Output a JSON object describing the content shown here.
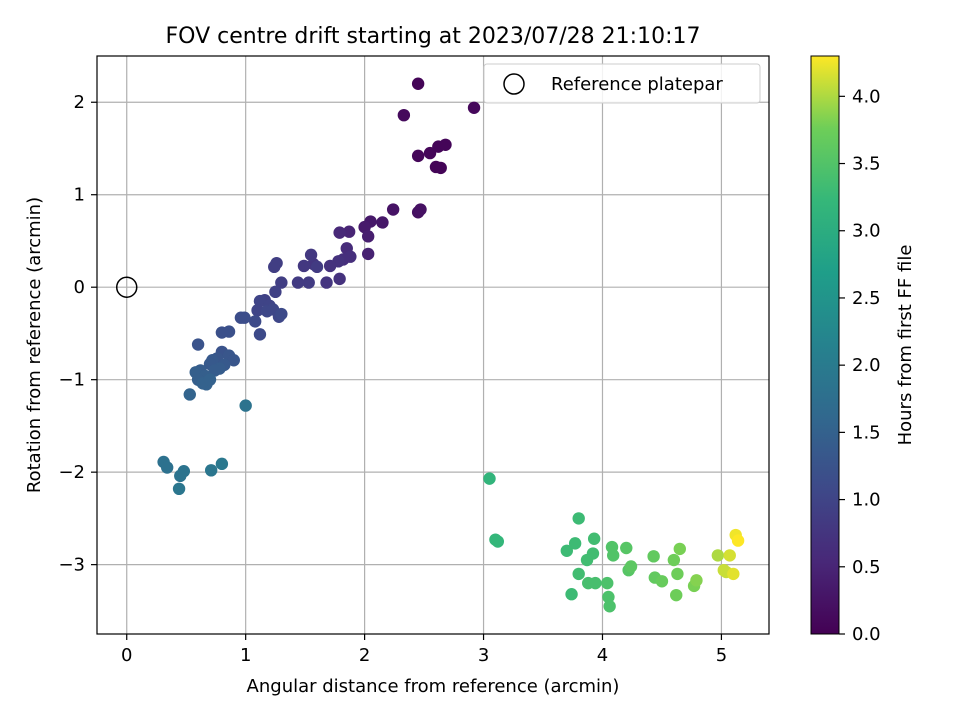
{
  "chart_data": {
    "type": "scatter",
    "title": "FOV centre drift starting at 2023/07/28 21:10:17",
    "xlabel": "Angular distance from reference (arcmin)",
    "ylabel": "Rotation from reference (arcmin)",
    "xlim": [
      -0.25,
      5.4
    ],
    "ylim": [
      -3.75,
      2.5
    ],
    "xticks": [
      0,
      1,
      2,
      3,
      4,
      5
    ],
    "yticks": [
      2,
      1,
      0,
      -1,
      -2,
      -3
    ],
    "xtick_labels": [
      "0",
      "1",
      "2",
      "3",
      "4",
      "5"
    ],
    "ytick_labels": [
      "2",
      "1",
      "0",
      "−1",
      "−2",
      "−3"
    ],
    "grid": true,
    "legend": {
      "placement": "top-right",
      "entries": [
        "Reference platepar"
      ]
    },
    "reference_point": {
      "x": 0,
      "y": 0,
      "label": "Reference platepar"
    },
    "colorbar": {
      "label": "Hours from first FF file",
      "colormap": "viridis",
      "range": [
        0.0,
        4.3
      ],
      "ticks": [
        0.0,
        0.5,
        1.0,
        1.5,
        2.0,
        2.5,
        3.0,
        3.5,
        4.0
      ],
      "tick_labels": [
        "0.0",
        "0.5",
        "1.0",
        "1.5",
        "2.0",
        "2.5",
        "3.0",
        "3.5",
        "4.0"
      ]
    },
    "points": [
      {
        "x": 2.45,
        "y": 2.2,
        "h": 0.05
      },
      {
        "x": 2.92,
        "y": 1.94,
        "h": 0.1
      },
      {
        "x": 2.33,
        "y": 1.86,
        "h": 0.12
      },
      {
        "x": 2.45,
        "y": 1.42,
        "h": 0.08
      },
      {
        "x": 2.55,
        "y": 1.45,
        "h": 0.07
      },
      {
        "x": 2.62,
        "y": 1.52,
        "h": 0.06
      },
      {
        "x": 2.68,
        "y": 1.54,
        "h": 0.06
      },
      {
        "x": 2.6,
        "y": 1.3,
        "h": 0.05
      },
      {
        "x": 2.64,
        "y": 1.29,
        "h": 0.05
      },
      {
        "x": 2.45,
        "y": 0.81,
        "h": 0.2
      },
      {
        "x": 2.47,
        "y": 0.84,
        "h": 0.22
      },
      {
        "x": 2.24,
        "y": 0.84,
        "h": 0.25
      },
      {
        "x": 2.15,
        "y": 0.7,
        "h": 0.3
      },
      {
        "x": 2.05,
        "y": 0.71,
        "h": 0.32
      },
      {
        "x": 2.0,
        "y": 0.65,
        "h": 0.35
      },
      {
        "x": 2.03,
        "y": 0.55,
        "h": 0.4
      },
      {
        "x": 2.03,
        "y": 0.36,
        "h": 0.45
      },
      {
        "x": 1.87,
        "y": 0.6,
        "h": 0.5
      },
      {
        "x": 1.79,
        "y": 0.59,
        "h": 0.55
      },
      {
        "x": 1.85,
        "y": 0.42,
        "h": 0.6
      },
      {
        "x": 1.88,
        "y": 0.33,
        "h": 0.65
      },
      {
        "x": 1.82,
        "y": 0.3,
        "h": 0.65
      },
      {
        "x": 1.78,
        "y": 0.28,
        "h": 0.7
      },
      {
        "x": 1.71,
        "y": 0.23,
        "h": 0.7
      },
      {
        "x": 1.79,
        "y": 0.09,
        "h": 0.7
      },
      {
        "x": 1.68,
        "y": 0.05,
        "h": 0.75
      },
      {
        "x": 1.57,
        "y": 0.25,
        "h": 0.75
      },
      {
        "x": 1.55,
        "y": 0.35,
        "h": 0.8
      },
      {
        "x": 1.49,
        "y": 0.23,
        "h": 0.8
      },
      {
        "x": 1.6,
        "y": 0.22,
        "h": 0.85
      },
      {
        "x": 1.53,
        "y": 0.05,
        "h": 0.85
      },
      {
        "x": 1.44,
        "y": 0.05,
        "h": 0.85
      },
      {
        "x": 1.3,
        "y": 0.05,
        "h": 0.9
      },
      {
        "x": 1.24,
        "y": 0.22,
        "h": 0.9
      },
      {
        "x": 1.26,
        "y": 0.26,
        "h": 0.9
      },
      {
        "x": 1.25,
        "y": -0.05,
        "h": 0.95
      },
      {
        "x": 1.16,
        "y": -0.14,
        "h": 0.95
      },
      {
        "x": 1.12,
        "y": -0.15,
        "h": 1.0
      },
      {
        "x": 1.2,
        "y": -0.2,
        "h": 1.0
      },
      {
        "x": 1.1,
        "y": -0.25,
        "h": 1.0
      },
      {
        "x": 1.18,
        "y": -0.26,
        "h": 1.05
      },
      {
        "x": 1.23,
        "y": -0.24,
        "h": 1.05
      },
      {
        "x": 1.28,
        "y": -0.32,
        "h": 1.05
      },
      {
        "x": 1.3,
        "y": -0.29,
        "h": 1.1
      },
      {
        "x": 1.08,
        "y": -0.37,
        "h": 1.1
      },
      {
        "x": 1.12,
        "y": -0.51,
        "h": 1.1
      },
      {
        "x": 0.96,
        "y": -0.33,
        "h": 1.15
      },
      {
        "x": 0.99,
        "y": -0.33,
        "h": 1.15
      },
      {
        "x": 0.86,
        "y": -0.48,
        "h": 1.2
      },
      {
        "x": 0.8,
        "y": -0.49,
        "h": 1.2
      },
      {
        "x": 0.6,
        "y": -0.62,
        "h": 1.25
      },
      {
        "x": 0.8,
        "y": -0.7,
        "h": 1.25
      },
      {
        "x": 0.86,
        "y": -0.74,
        "h": 1.3
      },
      {
        "x": 0.9,
        "y": -0.79,
        "h": 1.3
      },
      {
        "x": 0.76,
        "y": -0.77,
        "h": 1.3
      },
      {
        "x": 0.72,
        "y": -0.79,
        "h": 1.35
      },
      {
        "x": 0.7,
        "y": -0.83,
        "h": 1.35
      },
      {
        "x": 0.82,
        "y": -0.84,
        "h": 1.35
      },
      {
        "x": 0.78,
        "y": -0.88,
        "h": 1.4
      },
      {
        "x": 0.74,
        "y": -0.9,
        "h": 1.4
      },
      {
        "x": 0.62,
        "y": -0.9,
        "h": 1.4
      },
      {
        "x": 0.58,
        "y": -0.92,
        "h": 1.45
      },
      {
        "x": 0.66,
        "y": -0.96,
        "h": 1.45
      },
      {
        "x": 0.6,
        "y": -1.0,
        "h": 1.45
      },
      {
        "x": 0.64,
        "y": -1.04,
        "h": 1.5
      },
      {
        "x": 0.67,
        "y": -1.05,
        "h": 1.5
      },
      {
        "x": 0.7,
        "y": -1.0,
        "h": 1.5
      },
      {
        "x": 0.53,
        "y": -1.16,
        "h": 1.55
      },
      {
        "x": 1.0,
        "y": -1.28,
        "h": 1.85
      },
      {
        "x": 0.31,
        "y": -1.89,
        "h": 1.8
      },
      {
        "x": 0.34,
        "y": -1.95,
        "h": 1.8
      },
      {
        "x": 0.48,
        "y": -1.99,
        "h": 1.85
      },
      {
        "x": 0.45,
        "y": -2.04,
        "h": 1.85
      },
      {
        "x": 0.44,
        "y": -2.18,
        "h": 1.9
      },
      {
        "x": 0.71,
        "y": -1.98,
        "h": 1.9
      },
      {
        "x": 0.8,
        "y": -1.91,
        "h": 1.95
      },
      {
        "x": 3.05,
        "y": -2.07,
        "h": 3.15
      },
      {
        "x": 3.1,
        "y": -2.73,
        "h": 3.2
      },
      {
        "x": 3.12,
        "y": -2.75,
        "h": 3.2
      },
      {
        "x": 3.8,
        "y": -2.5,
        "h": 3.3
      },
      {
        "x": 3.74,
        "y": -3.32,
        "h": 3.3
      },
      {
        "x": 3.7,
        "y": -2.85,
        "h": 3.3
      },
      {
        "x": 3.77,
        "y": -2.77,
        "h": 3.3
      },
      {
        "x": 3.8,
        "y": -3.1,
        "h": 3.35
      },
      {
        "x": 3.87,
        "y": -2.95,
        "h": 3.35
      },
      {
        "x": 3.92,
        "y": -2.88,
        "h": 3.35
      },
      {
        "x": 3.93,
        "y": -2.72,
        "h": 3.35
      },
      {
        "x": 3.88,
        "y": -3.2,
        "h": 3.4
      },
      {
        "x": 3.94,
        "y": -3.2,
        "h": 3.4
      },
      {
        "x": 4.04,
        "y": -3.2,
        "h": 3.45
      },
      {
        "x": 4.05,
        "y": -3.35,
        "h": 3.45
      },
      {
        "x": 4.06,
        "y": -3.45,
        "h": 3.45
      },
      {
        "x": 4.08,
        "y": -2.81,
        "h": 3.5
      },
      {
        "x": 4.09,
        "y": -2.9,
        "h": 3.5
      },
      {
        "x": 4.2,
        "y": -2.82,
        "h": 3.55
      },
      {
        "x": 4.22,
        "y": -3.06,
        "h": 3.55
      },
      {
        "x": 4.24,
        "y": -3.02,
        "h": 3.6
      },
      {
        "x": 4.43,
        "y": -2.91,
        "h": 3.65
      },
      {
        "x": 4.44,
        "y": -3.14,
        "h": 3.65
      },
      {
        "x": 4.5,
        "y": -3.18,
        "h": 3.7
      },
      {
        "x": 4.6,
        "y": -2.95,
        "h": 3.75
      },
      {
        "x": 4.62,
        "y": -3.33,
        "h": 3.75
      },
      {
        "x": 4.63,
        "y": -3.1,
        "h": 3.75
      },
      {
        "x": 4.65,
        "y": -2.83,
        "h": 3.8
      },
      {
        "x": 4.77,
        "y": -3.23,
        "h": 3.8
      },
      {
        "x": 4.79,
        "y": -3.17,
        "h": 3.85
      },
      {
        "x": 4.97,
        "y": -2.9,
        "h": 4.0
      },
      {
        "x": 5.02,
        "y": -3.06,
        "h": 4.1
      },
      {
        "x": 5.04,
        "y": -3.08,
        "h": 4.1
      },
      {
        "x": 5.07,
        "y": -2.9,
        "h": 4.15
      },
      {
        "x": 5.1,
        "y": -3.1,
        "h": 4.2
      },
      {
        "x": 5.12,
        "y": -2.68,
        "h": 4.25
      },
      {
        "x": 5.14,
        "y": -2.74,
        "h": 4.3
      }
    ]
  }
}
